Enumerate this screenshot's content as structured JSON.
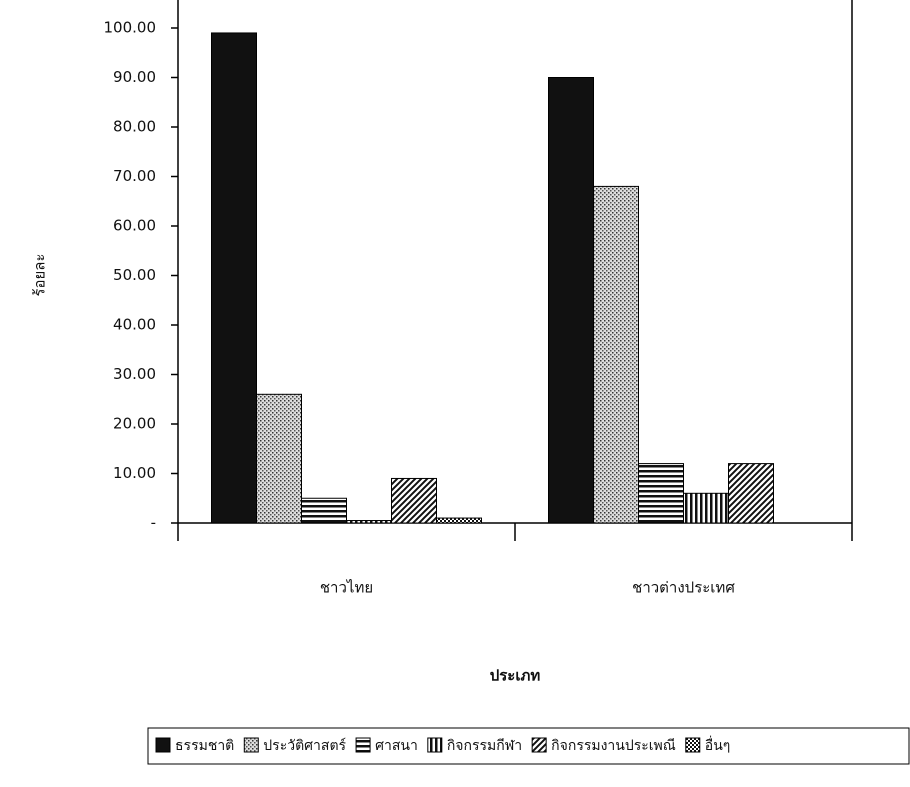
{
  "chart_data": {
    "type": "bar",
    "x_label": "ประเภท",
    "y_label": "ร้อยละ",
    "categories": [
      "ชาวไทย",
      "ชาวต่างประเทศ"
    ],
    "series": [
      {
        "name": "ธรรมชาติ",
        "pattern": "solid",
        "values": [
          99,
          90
        ]
      },
      {
        "name": "ประวัติศาสตร์",
        "pattern": "dots",
        "values": [
          26,
          68
        ]
      },
      {
        "name": "ศาสนา",
        "pattern": "hlines",
        "values": [
          5,
          12
        ]
      },
      {
        "name": "กิจกรรมกีฬา",
        "pattern": "vlines",
        "values": [
          0.5,
          6
        ]
      },
      {
        "name": "กิจกรรมงานประเพณี",
        "pattern": "diagonal",
        "values": [
          9,
          12
        ]
      },
      {
        "name": "อื่นๆ",
        "pattern": "checker",
        "values": [
          1,
          0
        ]
      }
    ],
    "ylim": [
      0,
      100
    ],
    "yticks": [
      {
        "value": 0,
        "label": "-"
      },
      {
        "value": 10,
        "label": "10.00"
      },
      {
        "value": 20,
        "label": "20.00"
      },
      {
        "value": 30,
        "label": "30.00"
      },
      {
        "value": 40,
        "label": "40.00"
      },
      {
        "value": 50,
        "label": "50.00"
      },
      {
        "value": 60,
        "label": "60.00"
      },
      {
        "value": 70,
        "label": "70.00"
      },
      {
        "value": 80,
        "label": "80.00"
      },
      {
        "value": 90,
        "label": "90.00"
      },
      {
        "value": 100,
        "label": "100.00"
      }
    ],
    "legend": "bottom"
  }
}
